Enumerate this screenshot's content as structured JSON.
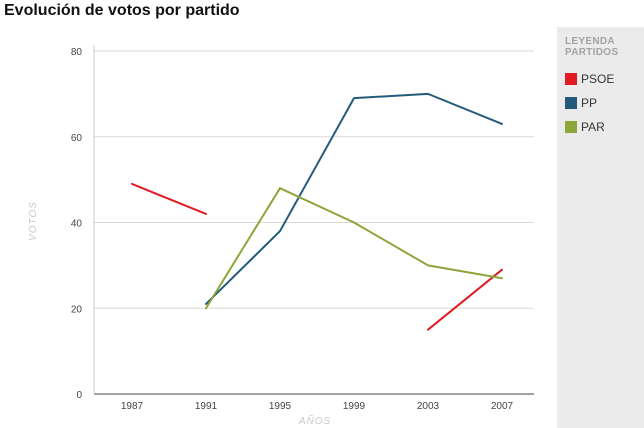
{
  "chart_data": {
    "type": "line",
    "title": "Evolución de votos por partido",
    "xlabel": "AÑOS",
    "ylabel": "VOTOS",
    "categories": [
      "1987",
      "1991",
      "1995",
      "1999",
      "2003",
      "2007"
    ],
    "ylim": [
      0,
      80
    ],
    "yticks": [
      0,
      20,
      40,
      60,
      80
    ],
    "grid": true,
    "legend_title": "LEYENDA PARTIDOS",
    "legend_position": "right",
    "series": [
      {
        "name": "PSOE",
        "color": "#e11b22",
        "values": [
          49,
          42,
          null,
          null,
          15,
          29
        ]
      },
      {
        "name": "PP",
        "color": "#245b7d",
        "values": [
          null,
          21,
          38,
          69,
          70,
          63
        ]
      },
      {
        "name": "PAR",
        "color": "#8ea53b",
        "values": [
          null,
          20,
          48,
          40,
          30,
          27
        ]
      }
    ]
  }
}
